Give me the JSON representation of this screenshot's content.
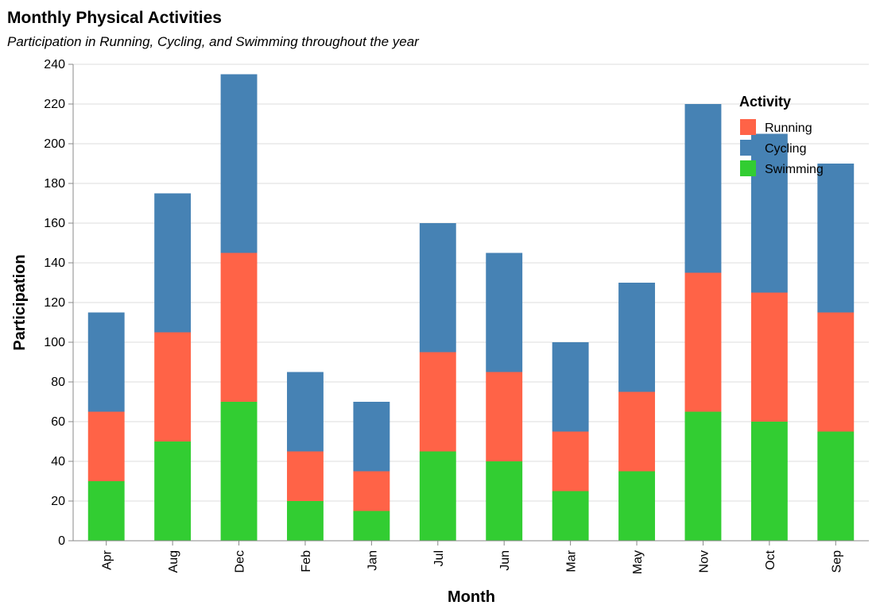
{
  "chart_data": {
    "type": "bar",
    "stacked": true,
    "title": "Monthly Physical Activities",
    "subtitle": "Participation in Running, Cycling, and Swimming throughout the year",
    "xlabel": "Month",
    "ylabel": "Participation",
    "ylim": [
      0,
      240
    ],
    "yticks": [
      0,
      20,
      40,
      60,
      80,
      100,
      120,
      140,
      160,
      180,
      200,
      220,
      240
    ],
    "grid": true,
    "categories": [
      "Apr",
      "Aug",
      "Dec",
      "Feb",
      "Jan",
      "Jul",
      "Jun",
      "Mar",
      "May",
      "Nov",
      "Oct",
      "Sep"
    ],
    "legend": {
      "title": "Activity",
      "placement": "top-right"
    },
    "series": [
      {
        "name": "Swimming",
        "color": "#32cd32",
        "values": [
          30,
          50,
          70,
          20,
          15,
          45,
          40,
          25,
          35,
          65,
          60,
          55
        ]
      },
      {
        "name": "Running",
        "color": "#ff6347",
        "values": [
          35,
          55,
          75,
          25,
          20,
          50,
          45,
          30,
          40,
          70,
          65,
          60
        ]
      },
      {
        "name": "Cycling",
        "color": "#4682b4",
        "values": [
          50,
          70,
          90,
          40,
          35,
          65,
          60,
          45,
          55,
          85,
          80,
          75
        ]
      }
    ],
    "legend_order": [
      "Running",
      "Cycling",
      "Swimming"
    ]
  }
}
